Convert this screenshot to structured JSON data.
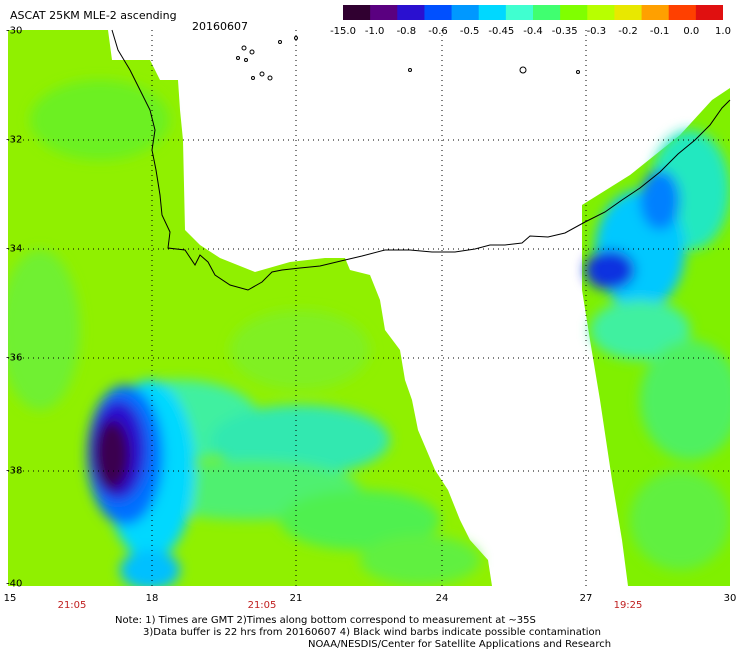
{
  "title": "ASCAT 25KM MLE-2 ascending",
  "date": "20160607",
  "colorbar": {
    "ticks": [
      "-15.0",
      "-1.0",
      "-0.8",
      "-0.6",
      "-0.5",
      "-0.45",
      "-0.4",
      "-0.35",
      "-0.3",
      "-0.2",
      "-0.1",
      "0.0",
      "1.0"
    ],
    "colors": [
      "#300030",
      "#5a0080",
      "#2a10d0",
      "#0050ff",
      "#0098ff",
      "#00d8ff",
      "#40ffd0",
      "#40ff70",
      "#80ff00",
      "#b8ff00",
      "#e8e800",
      "#ffa000",
      "#ff4000",
      "#e01010"
    ]
  },
  "latitudes": [
    "-30",
    "-32",
    "-34",
    "-36",
    "-38",
    "-40"
  ],
  "longitudes": [
    "15",
    "18",
    "21",
    "24",
    "27",
    "30"
  ],
  "times": [
    "21:05",
    "21:05",
    "19:25"
  ],
  "notes": [
    "Note: 1) Times are GMT 2)Times along bottom correspond to measurement at ~35S",
    "3)Data buffer is 22 hrs from 20160607 4) Black wind barbs indicate possible contamination",
    "NOAA/NESDIS/Center for Satellite Applications and Research"
  ]
}
